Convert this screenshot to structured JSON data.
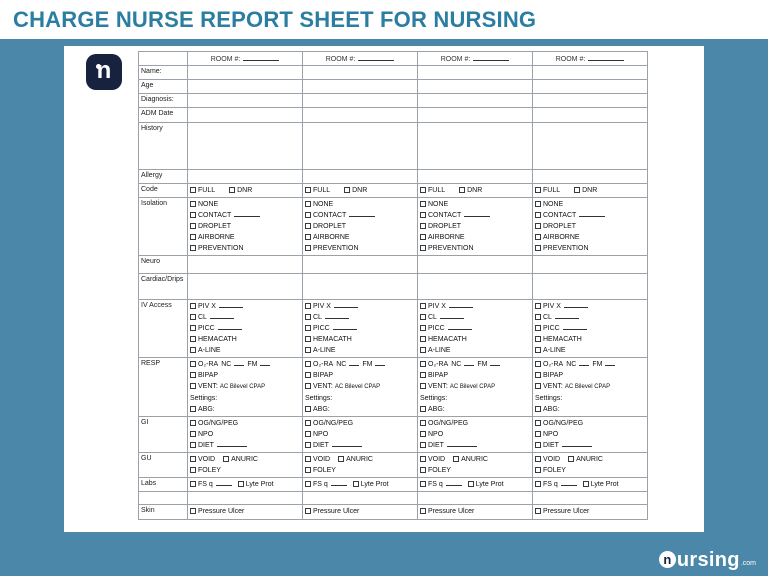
{
  "page": {
    "title": "CHARGE NURSE REPORT SHEET FOR NURSING"
  },
  "colors": {
    "background": "#4A87A8",
    "title_accent": "#2B7EA1",
    "logo_navy": "#16223E",
    "table_border": "#9aa1a9"
  },
  "brand": {
    "icon_letter": "n",
    "name_rest": "ursing",
    "tld": ".com"
  },
  "table": {
    "room_header_label": "ROOM #:",
    "rows": [
      {
        "label": "",
        "header": true,
        "h": 13
      },
      {
        "label": "Name:",
        "h": 14
      },
      {
        "label": "Age",
        "h": 14
      },
      {
        "label": "Diagnosis:",
        "h": 14
      },
      {
        "label": "ADM Date",
        "h": 15
      },
      {
        "label": "History",
        "h": 47
      },
      {
        "label": "Allergy",
        "h": 14
      },
      {
        "label": "Code",
        "lines": [
          [
            {
              "c": "FULL"
            },
            {
              "gap": 14
            },
            {
              "c": "DNR"
            }
          ]
        ]
      },
      {
        "label": "Isolation",
        "lines": [
          [
            {
              "c": "NONE"
            }
          ],
          [
            {
              "c": "CONTACT"
            },
            {
              "b": 26
            }
          ],
          [
            {
              "c": "DROPLET"
            }
          ],
          [
            {
              "c": "AIRBORNE"
            }
          ],
          [
            {
              "c": "PREVENTION"
            }
          ]
        ]
      },
      {
        "label": "Neuro",
        "h": 18
      },
      {
        "label": "Cardiac/Drips",
        "h": 26
      },
      {
        "label": "IV Access",
        "strong": true,
        "lines": [
          [
            {
              "c": "PIV X"
            },
            {
              "b": 24
            }
          ],
          [
            {
              "c": "CL"
            },
            {
              "b": 24
            }
          ],
          [
            {
              "c": "PICC"
            },
            {
              "b": 24
            }
          ],
          [
            {
              "c": "HEMACATH"
            }
          ],
          [
            {
              "c": "A-LINE"
            }
          ]
        ]
      },
      {
        "label": "RESP",
        "strong": true,
        "lines": [
          [
            {
              "c": "O₂-RA"
            },
            {
              "t": "NC"
            },
            {
              "b": 10
            },
            {
              "t": "FM"
            },
            {
              "b": 10
            }
          ],
          [
            {
              "c": "BIPAP"
            }
          ],
          [
            {
              "c": "VENT:"
            },
            {
              "small": "AC Bilevel CPAP"
            }
          ],
          [
            {
              "t": "Settings:"
            }
          ],
          [
            {
              "c": "ABG:"
            }
          ]
        ]
      },
      {
        "label": "GI",
        "strong": true,
        "lines": [
          [
            {
              "c": "OG/NG/PEG"
            }
          ],
          [
            {
              "c": "NPO"
            }
          ],
          [
            {
              "c": "DIET"
            },
            {
              "b": 30
            }
          ]
        ]
      },
      {
        "label": "GU",
        "strong": true,
        "lines": [
          [
            {
              "c": "VOID"
            },
            {
              "gap": 8
            },
            {
              "c": "ANURIC"
            }
          ],
          [
            {
              "c": "FOLEY"
            }
          ]
        ]
      },
      {
        "label": "Labs",
        "strong": true,
        "lines": [
          [
            {
              "c": "FS q"
            },
            {
              "b": 16
            },
            {
              "gap": 6
            },
            {
              "c": "Lyte Prot"
            }
          ]
        ]
      },
      {
        "label": "",
        "h": 13
      },
      {
        "label": "Skin",
        "strong": true,
        "h": 15,
        "lines": [
          [
            {
              "c": "Pressure Ulcer"
            }
          ]
        ]
      }
    ]
  }
}
